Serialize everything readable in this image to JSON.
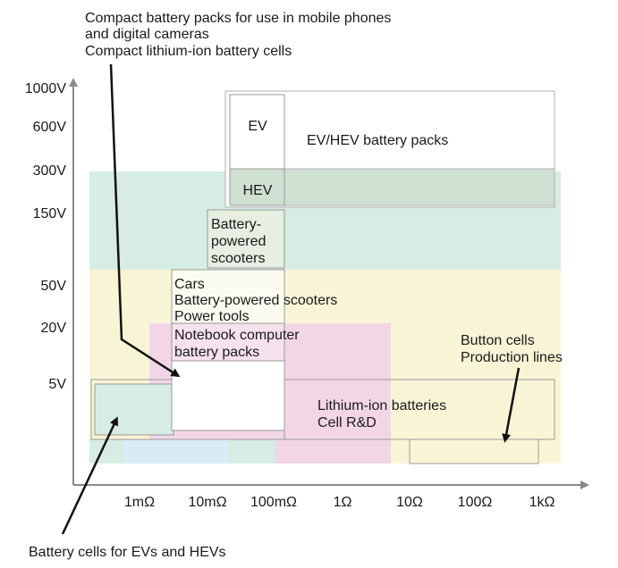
{
  "y_axis": {
    "ticks": [
      "1000V",
      "600V",
      "300V",
      "150V",
      "50V",
      "20V",
      "5V"
    ]
  },
  "x_axis": {
    "ticks": [
      "1mΩ",
      "10mΩ",
      "100mΩ",
      "1Ω",
      "10Ω",
      "100Ω",
      "1kΩ"
    ]
  },
  "regions": {
    "ev": "EV",
    "ev_hev_packs": "EV/HEV battery packs",
    "hev": "HEV",
    "scooter_lines": [
      "Battery-",
      "powered",
      "scooters"
    ],
    "cars_lines": [
      "Cars",
      "Battery-powered scooters",
      "Power tools"
    ],
    "notebook_lines": [
      "Notebook computer",
      "battery packs"
    ],
    "lithium_lines": [
      "Lithium-ion batteries",
      "Cell R&D"
    ]
  },
  "callouts": {
    "top_lines": [
      "Compact battery packs for use in mobile phones",
      "and digital cameras",
      "Compact lithium-ion battery cells"
    ],
    "button_lines": [
      "Button cells",
      "Production lines"
    ],
    "bottom": "Battery cells for EVs and HEVs"
  },
  "colors": {
    "teal_band": "#d7ece3",
    "yellow_band": "#f8f5d6",
    "pink_region": "#f2d6e6",
    "blue_region": "#d9ecf6",
    "hev_fill": "#cfe0d3",
    "axis": "#8a8a8a",
    "box_border": "#9a9a9a"
  }
}
